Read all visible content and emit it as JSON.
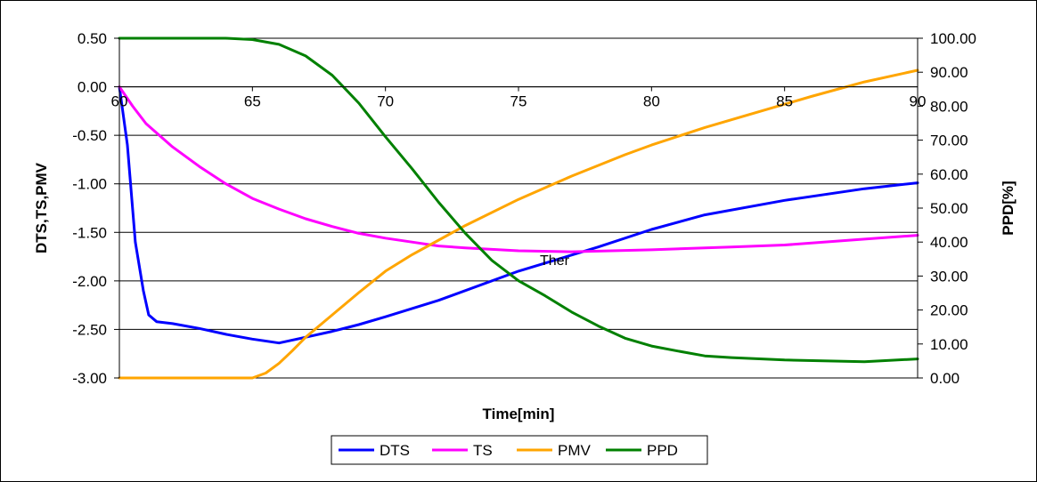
{
  "chart_data": {
    "type": "line",
    "title": "",
    "xlabel": "Time[min]",
    "ylabel_left": "DTS,TS,PMV",
    "ylabel_right": "PPD[%]",
    "xlim": [
      60,
      90
    ],
    "ylim_left": [
      -3.0,
      0.5
    ],
    "ylim_right": [
      0,
      100
    ],
    "x_ticks": [
      "60",
      "65",
      "70",
      "75",
      "80",
      "85",
      "90"
    ],
    "y_left_ticks": [
      "0.50",
      "0.00",
      "-0.50",
      "-1.00",
      "-1.50",
      "-2.00",
      "-2.50",
      "-3.00"
    ],
    "y_right_ticks": [
      "100.00",
      "90.00",
      "80.00",
      "70.00",
      "60.00",
      "50.00",
      "40.00",
      "30.00",
      "20.00",
      "10.00",
      "0.00"
    ],
    "grid": "horizontal",
    "legend_position": "bottom",
    "annotation": "Ther",
    "series": [
      {
        "name": "DTS",
        "axis": "left",
        "color": "#0000ff",
        "points": [
          [
            60,
            0.0
          ],
          [
            60.3,
            -0.6
          ],
          [
            60.6,
            -1.6
          ],
          [
            60.9,
            -2.1
          ],
          [
            61.1,
            -2.35
          ],
          [
            61.4,
            -2.42
          ],
          [
            62,
            -2.44
          ],
          [
            63,
            -2.49
          ],
          [
            64,
            -2.55
          ],
          [
            65,
            -2.6
          ],
          [
            66,
            -2.64
          ],
          [
            67,
            -2.58
          ],
          [
            68,
            -2.52
          ],
          [
            69,
            -2.45
          ],
          [
            70,
            -2.37
          ],
          [
            72,
            -2.2
          ],
          [
            75,
            -1.9
          ],
          [
            78,
            -1.65
          ],
          [
            80,
            -1.47
          ],
          [
            82,
            -1.32
          ],
          [
            85,
            -1.17
          ],
          [
            88,
            -1.05
          ],
          [
            90,
            -0.99
          ]
        ]
      },
      {
        "name": "TS",
        "axis": "left",
        "color": "#ff00ff",
        "points": [
          [
            60,
            0.0
          ],
          [
            60.5,
            -0.2
          ],
          [
            61,
            -0.38
          ],
          [
            62,
            -0.62
          ],
          [
            63,
            -0.82
          ],
          [
            64,
            -1.0
          ],
          [
            65,
            -1.15
          ],
          [
            66,
            -1.26
          ],
          [
            67,
            -1.36
          ],
          [
            68,
            -1.44
          ],
          [
            69,
            -1.51
          ],
          [
            70,
            -1.56
          ],
          [
            71,
            -1.6
          ],
          [
            72,
            -1.64
          ],
          [
            73,
            -1.66
          ],
          [
            75,
            -1.69
          ],
          [
            77,
            -1.7
          ],
          [
            80,
            -1.68
          ],
          [
            83,
            -1.65
          ],
          [
            85,
            -1.63
          ],
          [
            88,
            -1.57
          ],
          [
            90,
            -1.53
          ]
        ]
      },
      {
        "name": "PMV",
        "axis": "left",
        "color": "#ffa500",
        "points": [
          [
            60,
            -3.0
          ],
          [
            62,
            -3.0
          ],
          [
            64,
            -3.0
          ],
          [
            65,
            -3.0
          ],
          [
            65.5,
            -2.95
          ],
          [
            66,
            -2.85
          ],
          [
            66.5,
            -2.72
          ],
          [
            67,
            -2.58
          ],
          [
            68,
            -2.35
          ],
          [
            69,
            -2.12
          ],
          [
            70,
            -1.9
          ],
          [
            71,
            -1.73
          ],
          [
            72,
            -1.58
          ],
          [
            73,
            -1.43
          ],
          [
            75,
            -1.16
          ],
          [
            77,
            -0.92
          ],
          [
            79,
            -0.7
          ],
          [
            80,
            -0.6
          ],
          [
            82,
            -0.42
          ],
          [
            84,
            -0.26
          ],
          [
            86,
            -0.1
          ],
          [
            88,
            0.05
          ],
          [
            90,
            0.17
          ]
        ]
      },
      {
        "name": "PPD",
        "axis": "right",
        "color": "#008000",
        "points": [
          [
            60,
            100
          ],
          [
            62,
            100
          ],
          [
            64,
            100
          ],
          [
            65,
            99.6
          ],
          [
            66,
            98.2
          ],
          [
            67,
            94.8
          ],
          [
            68,
            89.1
          ],
          [
            69,
            80.9
          ],
          [
            70,
            71.0
          ],
          [
            71,
            61.6
          ],
          [
            72,
            51.7
          ],
          [
            73,
            42.6
          ],
          [
            74,
            34.6
          ],
          [
            75,
            28.6
          ],
          [
            76,
            24.2
          ],
          [
            77,
            19.4
          ],
          [
            78,
            15.3
          ],
          [
            79,
            11.7
          ],
          [
            80,
            9.4
          ],
          [
            81,
            7.9
          ],
          [
            82,
            6.5
          ],
          [
            83,
            6.0
          ],
          [
            85,
            5.3
          ],
          [
            88,
            4.8
          ],
          [
            90,
            5.6
          ]
        ]
      }
    ]
  }
}
